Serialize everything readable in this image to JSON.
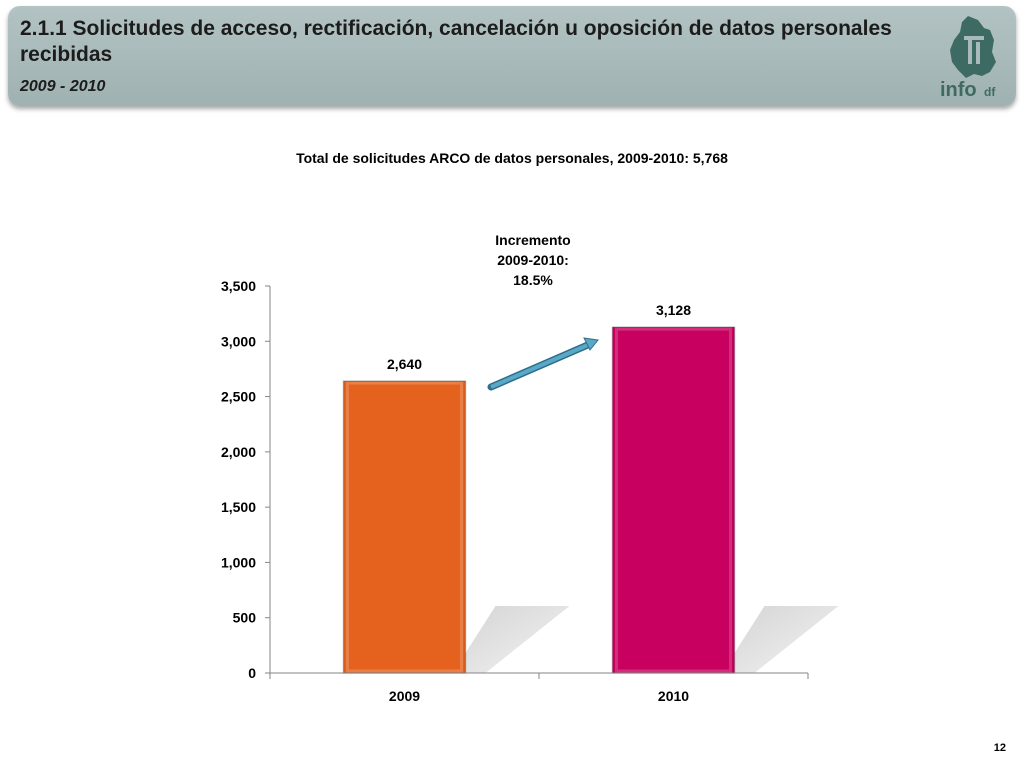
{
  "header": {
    "title": "2.1.1 Solicitudes de acceso, rectificación, cancelación u oposición de datos personales recibidas",
    "subtitle": "2009 - 2010",
    "logo_text": "info",
    "logo_suffix": "df"
  },
  "annotation": {
    "line1": "Incremento",
    "line2": "2009-2010:",
    "line3": "18.5%"
  },
  "page_number": "12",
  "colors": {
    "header_bg": "#a9baba",
    "bar_2009": "#e5621e",
    "bar_2010": "#c8005f",
    "arrow": "#5aa8c8",
    "logo": "#3d6b63"
  },
  "chart_data": {
    "type": "bar",
    "title": "Total de solicitudes ARCO de datos personales, 2009-2010: 5,768",
    "categories": [
      "2009",
      "2010"
    ],
    "values": [
      2640,
      3128
    ],
    "value_labels": [
      "2,640",
      "3,128"
    ],
    "ylim": [
      0,
      3500
    ],
    "yticks": [
      0,
      500,
      1000,
      1500,
      2000,
      2500,
      3000,
      3500
    ],
    "ytick_labels": [
      "0",
      "500",
      "1,000",
      "1,500",
      "2,000",
      "2,500",
      "3,000",
      "3,500"
    ],
    "xlabel": "",
    "ylabel": "",
    "grid": false,
    "legend": "none"
  }
}
